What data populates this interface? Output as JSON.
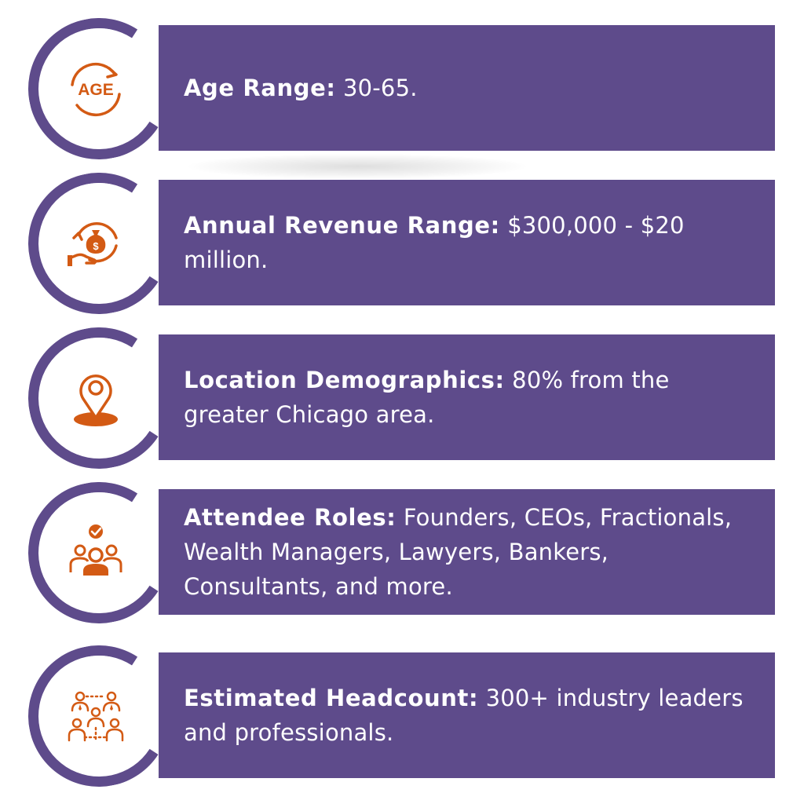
{
  "colors": {
    "accent_purple": "#5e4b8b",
    "icon_orange": "#d35a14",
    "text": "#ffffff"
  },
  "items": [
    {
      "icon": "age-cycle-icon",
      "label": "Age Range:",
      "value": " 30-65."
    },
    {
      "icon": "revenue-hand-moneybag-icon",
      "label": "Annual Revenue Range:",
      "value": " $300,000 - $20 million."
    },
    {
      "icon": "location-pin-icon",
      "label": "Location Demographics:",
      "value": " 80% from the greater Chicago area."
    },
    {
      "icon": "people-check-icon",
      "label": "Attendee Roles:",
      "value": " Founders, CEOs, Fractionals, Wealth Managers, Lawyers, Bankers, Consultants, and more."
    },
    {
      "icon": "network-people-icon",
      "label": "Estimated Headcount:",
      "value": " 300+ industry leaders and professionals."
    }
  ]
}
